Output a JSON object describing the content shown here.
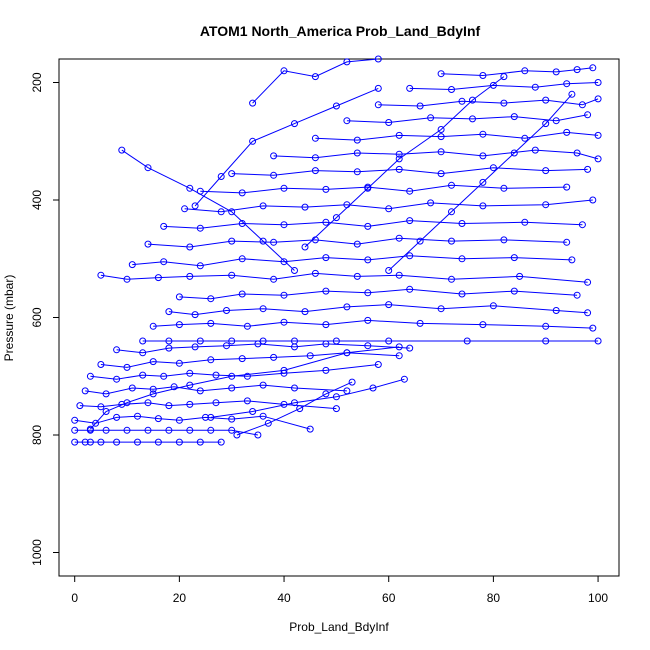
{
  "chart_data": {
    "type": "line",
    "title": "ATOM1 North_America Prob_Land_BdyInf",
    "xlabel": "Prob_Land_BdyInf",
    "ylabel": "Pressure (mbar)",
    "xlim": [
      -3,
      104
    ],
    "ylim": [
      1040,
      160
    ],
    "y_reversed": true,
    "grid": false,
    "x_ticks": [
      0,
      20,
      40,
      60,
      80,
      100
    ],
    "y_ticks": [
      200,
      400,
      600,
      800,
      1000
    ],
    "color": "#0000ff",
    "marker": "open-circle",
    "series": [
      {
        "x": [
          0,
          2,
          3,
          5,
          8,
          12,
          16,
          20,
          24,
          28
        ],
        "y": [
          812,
          812,
          812,
          812,
          812,
          812,
          812,
          812,
          812,
          812
        ]
      },
      {
        "x": [
          0,
          3,
          6,
          10,
          14,
          18,
          22,
          26,
          30,
          35
        ],
        "y": [
          792,
          792,
          792,
          792,
          792,
          792,
          792,
          792,
          792,
          800
        ]
      },
      {
        "x": [
          0,
          4,
          8,
          12,
          16,
          20,
          25,
          30,
          36,
          45
        ],
        "y": [
          775,
          780,
          770,
          768,
          772,
          775,
          770,
          773,
          768,
          790
        ]
      },
      {
        "x": [
          1,
          5,
          9,
          14,
          18,
          22,
          27,
          33,
          40,
          50
        ],
        "y": [
          750,
          752,
          748,
          745,
          750,
          748,
          745,
          742,
          748,
          755
        ]
      },
      {
        "x": [
          2,
          6,
          11,
          15,
          19,
          24,
          30,
          36,
          42,
          52
        ],
        "y": [
          725,
          730,
          720,
          722,
          718,
          725,
          720,
          715,
          720,
          725
        ]
      },
      {
        "x": [
          3,
          8,
          13,
          17,
          22,
          27,
          33,
          40,
          48,
          58
        ],
        "y": [
          700,
          705,
          698,
          700,
          695,
          698,
          700,
          695,
          690,
          680
        ]
      },
      {
        "x": [
          5,
          10,
          15,
          20,
          26,
          32,
          38,
          45,
          52,
          62
        ],
        "y": [
          680,
          685,
          675,
          678,
          672,
          670,
          668,
          665,
          660,
          665
        ]
      },
      {
        "x": [
          8,
          13,
          18,
          23,
          29,
          35,
          42,
          48,
          56,
          64
        ],
        "y": [
          655,
          660,
          652,
          650,
          648,
          645,
          650,
          645,
          648,
          652
        ]
      },
      {
        "x": [
          13,
          18,
          24,
          30,
          36,
          42,
          50,
          60,
          75,
          90,
          100
        ],
        "y": [
          640,
          640,
          640,
          640,
          640,
          640,
          640,
          640,
          640,
          640,
          640
        ]
      },
      {
        "x": [
          15,
          20,
          26,
          33,
          40,
          48,
          56,
          66,
          78,
          90,
          99
        ],
        "y": [
          615,
          612,
          610,
          615,
          608,
          612,
          605,
          610,
          612,
          615,
          618
        ]
      },
      {
        "x": [
          18,
          23,
          29,
          36,
          44,
          52,
          60,
          70,
          80,
          92,
          98
        ],
        "y": [
          590,
          595,
          588,
          585,
          590,
          582,
          578,
          585,
          580,
          588,
          592
        ]
      },
      {
        "x": [
          20,
          26,
          32,
          40,
          48,
          56,
          64,
          74,
          84,
          96
        ],
        "y": [
          565,
          568,
          560,
          562,
          555,
          558,
          552,
          560,
          555,
          562
        ]
      },
      {
        "x": [
          5,
          10,
          16,
          22,
          30,
          38,
          46,
          54,
          62,
          72,
          85,
          98
        ],
        "y": [
          528,
          535,
          532,
          530,
          528,
          535,
          525,
          530,
          528,
          535,
          530,
          540
        ]
      },
      {
        "x": [
          11,
          17,
          24,
          32,
          40,
          48,
          56,
          64,
          74,
          84,
          95
        ],
        "y": [
          510,
          505,
          512,
          500,
          505,
          498,
          502,
          495,
          500,
          498,
          502
        ]
      },
      {
        "x": [
          14,
          22,
          30,
          38,
          46,
          54,
          62,
          72,
          82,
          94
        ],
        "y": [
          475,
          480,
          470,
          472,
          468,
          475,
          465,
          470,
          468,
          472
        ]
      },
      {
        "x": [
          17,
          24,
          32,
          40,
          48,
          56,
          64,
          74,
          86,
          97
        ],
        "y": [
          445,
          448,
          440,
          442,
          438,
          445,
          435,
          440,
          438,
          442
        ]
      },
      {
        "x": [
          21,
          28,
          36,
          44,
          52,
          60,
          68,
          78,
          90,
          99
        ],
        "y": [
          415,
          420,
          410,
          412,
          408,
          415,
          405,
          410,
          408,
          400
        ]
      },
      {
        "x": [
          24,
          32,
          40,
          48,
          56,
          64,
          72,
          82,
          94
        ],
        "y": [
          385,
          388,
          380,
          382,
          378,
          385,
          375,
          380,
          378
        ]
      },
      {
        "x": [
          30,
          38,
          46,
          54,
          62,
          70,
          80,
          90,
          98
        ],
        "y": [
          355,
          358,
          350,
          352,
          348,
          355,
          345,
          350,
          348
        ]
      },
      {
        "x": [
          38,
          46,
          54,
          62,
          70,
          78,
          88,
          96,
          100
        ],
        "y": [
          325,
          328,
          320,
          322,
          318,
          325,
          315,
          320,
          330
        ]
      },
      {
        "x": [
          46,
          54,
          62,
          70,
          78,
          86,
          94,
          100
        ],
        "y": [
          295,
          298,
          290,
          292,
          288,
          295,
          285,
          290
        ]
      },
      {
        "x": [
          52,
          60,
          68,
          76,
          84,
          92,
          98
        ],
        "y": [
          265,
          268,
          260,
          262,
          258,
          265,
          255
        ]
      },
      {
        "x": [
          58,
          66,
          74,
          82,
          90,
          97,
          100
        ],
        "y": [
          238,
          240,
          232,
          235,
          230,
          238,
          228
        ]
      },
      {
        "x": [
          64,
          72,
          80,
          88,
          94,
          100
        ],
        "y": [
          210,
          212,
          205,
          208,
          202,
          200
        ]
      },
      {
        "x": [
          70,
          78,
          86,
          92,
          96,
          99
        ],
        "y": [
          185,
          188,
          180,
          182,
          178,
          175
        ]
      },
      {
        "x": [
          9,
          14,
          22,
          30,
          36,
          42
        ],
        "y": [
          315,
          345,
          380,
          420,
          470,
          520
        ]
      },
      {
        "x": [
          23,
          28,
          34,
          42,
          50,
          58
        ],
        "y": [
          410,
          360,
          300,
          270,
          240,
          210
        ]
      },
      {
        "x": [
          34,
          40,
          46,
          52,
          58
        ],
        "y": [
          235,
          180,
          190,
          165,
          160
        ]
      },
      {
        "x": [
          44,
          50,
          56,
          62,
          70,
          76,
          82
        ],
        "y": [
          480,
          430,
          380,
          330,
          280,
          230,
          190
        ]
      },
      {
        "x": [
          60,
          66,
          72,
          78,
          84,
          90,
          95
        ],
        "y": [
          520,
          470,
          420,
          370,
          320,
          270,
          220
        ]
      },
      {
        "x": [
          3,
          6,
          10,
          15,
          22,
          30,
          40,
          52,
          62
        ],
        "y": [
          790,
          760,
          745,
          730,
          715,
          700,
          690,
          660,
          650
        ]
      },
      {
        "x": [
          26,
          34,
          42,
          50,
          57,
          63
        ],
        "y": [
          770,
          760,
          745,
          735,
          720,
          705
        ]
      },
      {
        "x": [
          31,
          37,
          43,
          48,
          53
        ],
        "y": [
          800,
          780,
          755,
          730,
          710
        ]
      }
    ]
  }
}
